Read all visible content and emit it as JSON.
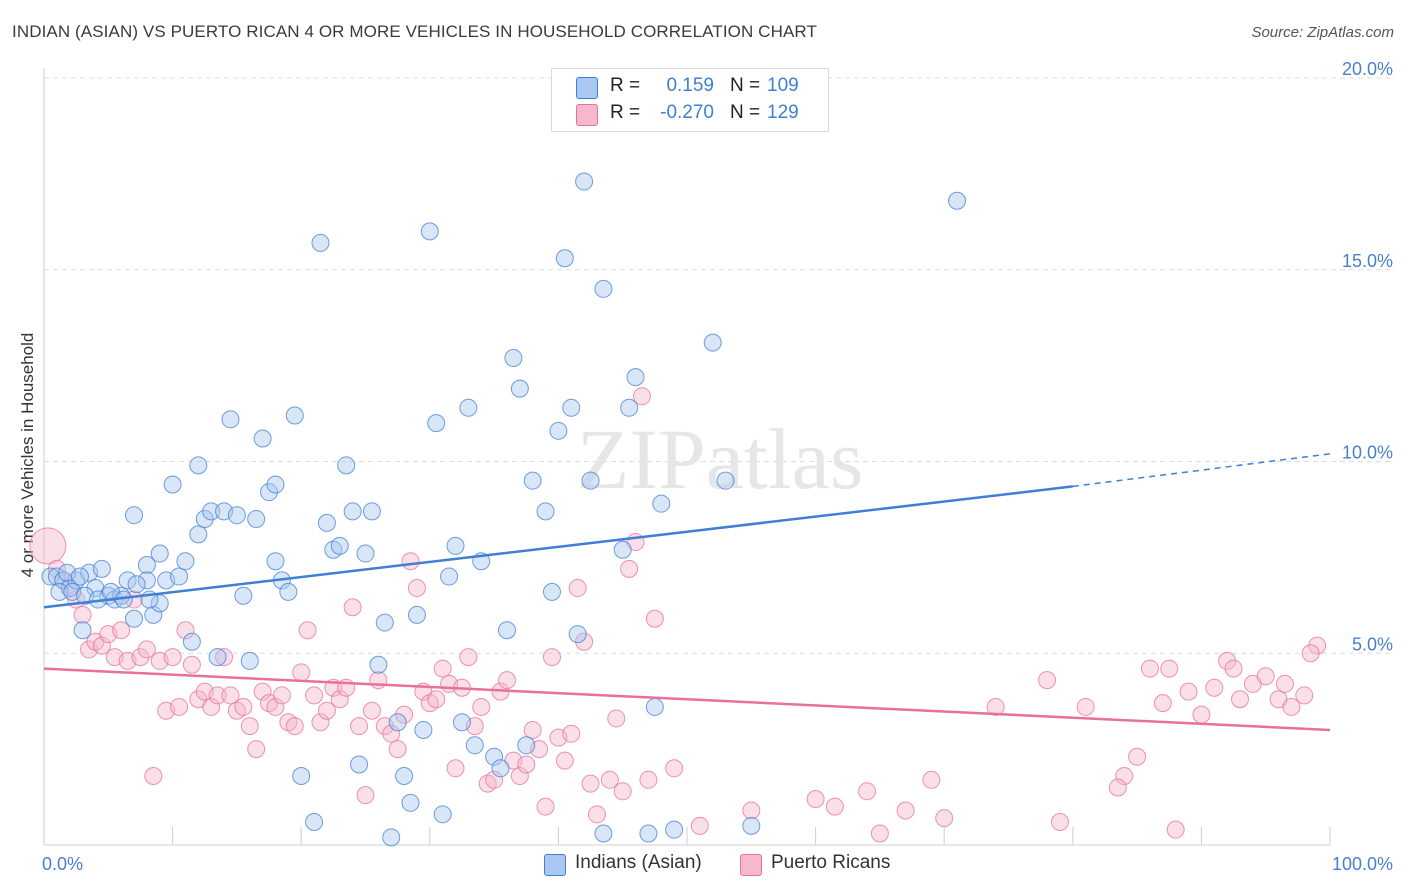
{
  "title": "INDIAN (ASIAN) VS PUERTO RICAN 4 OR MORE VEHICLES IN HOUSEHOLD CORRELATION CHART",
  "source": "Source: ZipAtlas.com",
  "watermark": "ZIPatlas",
  "colors": {
    "blue": "#3f7fd4",
    "blue_fill": "#aac8ef",
    "pink": "#e8709b",
    "pink_fill": "#f5b8cd",
    "axis_text": "#4a7fd0"
  },
  "legend_top": {
    "rows": [
      {
        "r_label": "R =",
        "r_value": "0.159",
        "n_label": "N =",
        "n_value": "109"
      },
      {
        "r_label": "R =",
        "r_value": "-0.270",
        "n_label": "N =",
        "n_value": "129"
      }
    ]
  },
  "chart_data": {
    "type": "scatter",
    "title": "INDIAN (ASIAN) VS PUERTO RICAN 4 OR MORE VEHICLES IN HOUSEHOLD CORRELATION CHART",
    "xlabel": "",
    "ylabel": "4 or more Vehicles in Household",
    "xlim": [
      0,
      100
    ],
    "ylim": [
      0,
      20
    ],
    "x_tick_labels": [
      "0.0%",
      "100.0%"
    ],
    "y_tick_labels": [
      "5.0%",
      "10.0%",
      "15.0%",
      "20.0%"
    ],
    "y_ticks": [
      5,
      10,
      15,
      20
    ],
    "grid": true,
    "series": [
      {
        "name": "Indians (Asian)",
        "r": 0.159,
        "n": 109,
        "trend": {
          "x0": 0,
          "y0": 6.2,
          "x1": 80,
          "y1": 9.35,
          "dashed_to_x": 100,
          "dashed_to_y": 10.2
        },
        "points": [
          [
            0.5,
            7.0
          ],
          [
            1.0,
            7.0
          ],
          [
            1.5,
            6.9
          ],
          [
            2.0,
            6.7
          ],
          [
            2.5,
            6.9
          ],
          [
            3.0,
            5.6
          ],
          [
            3.5,
            7.1
          ],
          [
            4.0,
            6.7
          ],
          [
            4.5,
            7.2
          ],
          [
            5.0,
            6.5
          ],
          [
            5.5,
            6.4
          ],
          [
            6.0,
            6.5
          ],
          [
            6.5,
            6.9
          ],
          [
            7.0,
            8.6
          ],
          [
            7.0,
            5.9
          ],
          [
            8.0,
            7.3
          ],
          [
            8.0,
            6.9
          ],
          [
            8.5,
            6.0
          ],
          [
            9.0,
            6.3
          ],
          [
            9.0,
            7.6
          ],
          [
            9.5,
            6.9
          ],
          [
            10.0,
            9.4
          ],
          [
            10.5,
            7.0
          ],
          [
            11.0,
            7.4
          ],
          [
            11.5,
            5.3
          ],
          [
            12.0,
            8.1
          ],
          [
            12.0,
            9.9
          ],
          [
            12.5,
            8.5
          ],
          [
            13.0,
            8.7
          ],
          [
            13.5,
            4.9
          ],
          [
            14.0,
            8.7
          ],
          [
            14.5,
            11.1
          ],
          [
            15.0,
            8.6
          ],
          [
            15.5,
            6.5
          ],
          [
            16.0,
            4.8
          ],
          [
            16.5,
            8.5
          ],
          [
            17.0,
            10.6
          ],
          [
            17.5,
            9.2
          ],
          [
            18.0,
            9.4
          ],
          [
            18.0,
            7.4
          ],
          [
            18.5,
            6.9
          ],
          [
            19.0,
            6.6
          ],
          [
            19.5,
            11.2
          ],
          [
            20.0,
            1.8
          ],
          [
            21.0,
            0.6
          ],
          [
            21.5,
            15.7
          ],
          [
            22.0,
            8.4
          ],
          [
            22.5,
            7.7
          ],
          [
            23.0,
            7.8
          ],
          [
            23.5,
            9.9
          ],
          [
            24.0,
            8.7
          ],
          [
            24.5,
            2.1
          ],
          [
            25.0,
            7.6
          ],
          [
            25.5,
            8.7
          ],
          [
            26.0,
            4.7
          ],
          [
            26.5,
            5.8
          ],
          [
            27.0,
            0.2
          ],
          [
            27.5,
            3.2
          ],
          [
            28.0,
            1.8
          ],
          [
            28.5,
            1.1
          ],
          [
            29.0,
            6.0
          ],
          [
            29.5,
            3.0
          ],
          [
            30.0,
            16.0
          ],
          [
            30.5,
            11.0
          ],
          [
            31.0,
            0.8
          ],
          [
            31.5,
            7.0
          ],
          [
            32.0,
            7.8
          ],
          [
            32.5,
            3.2
          ],
          [
            33.0,
            11.4
          ],
          [
            33.5,
            2.6
          ],
          [
            34.0,
            7.4
          ],
          [
            35.0,
            2.3
          ],
          [
            35.5,
            2.0
          ],
          [
            36.0,
            5.6
          ],
          [
            36.5,
            12.7
          ],
          [
            37.0,
            11.9
          ],
          [
            37.5,
            2.6
          ],
          [
            38.0,
            9.5
          ],
          [
            39.0,
            8.7
          ],
          [
            39.5,
            6.6
          ],
          [
            40.0,
            10.8
          ],
          [
            40.5,
            15.3
          ],
          [
            41.0,
            11.4
          ],
          [
            41.5,
            5.5
          ],
          [
            42.0,
            17.3
          ],
          [
            42.5,
            9.5
          ],
          [
            43.5,
            14.5
          ],
          [
            43.5,
            0.3
          ],
          [
            45.0,
            7.7
          ],
          [
            45.5,
            11.4
          ],
          [
            46.0,
            12.2
          ],
          [
            47.0,
            0.3
          ],
          [
            47.5,
            3.6
          ],
          [
            48.0,
            8.9
          ],
          [
            49.0,
            0.4
          ],
          [
            52.0,
            13.1
          ],
          [
            53.0,
            9.5
          ],
          [
            55.0,
            0.5
          ],
          [
            71.0,
            16.8
          ],
          [
            1.2,
            6.6
          ],
          [
            2.2,
            6.6
          ],
          [
            3.2,
            6.5
          ],
          [
            4.2,
            6.4
          ],
          [
            5.2,
            6.6
          ],
          [
            6.2,
            6.4
          ],
          [
            7.2,
            6.8
          ],
          [
            8.2,
            6.4
          ],
          [
            1.8,
            7.1
          ],
          [
            2.8,
            7.0
          ]
        ]
      },
      {
        "name": "Puerto Ricans",
        "r": -0.27,
        "n": 129,
        "trend": {
          "x0": 0,
          "y0": 4.6,
          "x1": 100,
          "y1": 3.0
        },
        "points": [
          [
            0.3,
            7.8
          ],
          [
            1.0,
            7.2
          ],
          [
            1.5,
            6.9
          ],
          [
            2.0,
            6.7
          ],
          [
            2.5,
            6.4
          ],
          [
            3.0,
            6.0
          ],
          [
            3.5,
            5.1
          ],
          [
            4.0,
            5.3
          ],
          [
            4.5,
            5.2
          ],
          [
            5.0,
            5.5
          ],
          [
            5.5,
            4.9
          ],
          [
            6.0,
            5.6
          ],
          [
            6.5,
            4.8
          ],
          [
            7.0,
            6.4
          ],
          [
            7.5,
            4.9
          ],
          [
            8.0,
            5.1
          ],
          [
            8.5,
            1.8
          ],
          [
            9.0,
            4.8
          ],
          [
            9.5,
            3.5
          ],
          [
            10.0,
            4.9
          ],
          [
            10.5,
            3.6
          ],
          [
            11.0,
            5.6
          ],
          [
            11.5,
            4.7
          ],
          [
            12.0,
            3.8
          ],
          [
            12.5,
            4.0
          ],
          [
            13.0,
            3.6
          ],
          [
            13.5,
            3.9
          ],
          [
            14.0,
            4.9
          ],
          [
            14.5,
            3.9
          ],
          [
            15.0,
            3.5
          ],
          [
            15.5,
            3.6
          ],
          [
            16.0,
            3.1
          ],
          [
            16.5,
            2.5
          ],
          [
            17.0,
            4.0
          ],
          [
            17.5,
            3.7
          ],
          [
            18.0,
            3.6
          ],
          [
            18.5,
            3.9
          ],
          [
            19.0,
            3.2
          ],
          [
            19.5,
            3.1
          ],
          [
            20.0,
            4.5
          ],
          [
            20.5,
            5.6
          ],
          [
            21.0,
            3.9
          ],
          [
            21.5,
            3.2
          ],
          [
            22.0,
            3.5
          ],
          [
            22.5,
            4.1
          ],
          [
            23.0,
            3.8
          ],
          [
            23.5,
            4.1
          ],
          [
            24.0,
            6.2
          ],
          [
            24.5,
            3.1
          ],
          [
            25.0,
            1.3
          ],
          [
            25.5,
            3.5
          ],
          [
            26.0,
            4.3
          ],
          [
            26.5,
            3.1
          ],
          [
            27.0,
            2.9
          ],
          [
            27.5,
            2.5
          ],
          [
            28.0,
            3.4
          ],
          [
            28.5,
            7.4
          ],
          [
            29.0,
            6.7
          ],
          [
            29.5,
            4.0
          ],
          [
            30.0,
            3.7
          ],
          [
            30.5,
            3.8
          ],
          [
            31.0,
            4.6
          ],
          [
            31.5,
            4.2
          ],
          [
            32.0,
            2.0
          ],
          [
            32.5,
            4.1
          ],
          [
            33.0,
            4.9
          ],
          [
            33.5,
            3.1
          ],
          [
            34.0,
            3.6
          ],
          [
            34.5,
            1.6
          ],
          [
            35.0,
            1.7
          ],
          [
            35.5,
            4.0
          ],
          [
            36.0,
            4.3
          ],
          [
            36.5,
            2.2
          ],
          [
            37.0,
            1.8
          ],
          [
            37.5,
            2.1
          ],
          [
            38.0,
            3.0
          ],
          [
            38.5,
            2.5
          ],
          [
            39.0,
            1.0
          ],
          [
            39.5,
            4.9
          ],
          [
            40.0,
            2.8
          ],
          [
            40.5,
            2.2
          ],
          [
            41.0,
            2.9
          ],
          [
            41.5,
            6.7
          ],
          [
            42.0,
            5.3
          ],
          [
            42.5,
            1.6
          ],
          [
            43.0,
            0.8
          ],
          [
            44.0,
            1.7
          ],
          [
            44.5,
            3.3
          ],
          [
            45.0,
            1.4
          ],
          [
            45.5,
            7.2
          ],
          [
            46.0,
            7.9
          ],
          [
            46.5,
            11.7
          ],
          [
            47.0,
            1.7
          ],
          [
            47.5,
            5.9
          ],
          [
            49.0,
            2.0
          ],
          [
            51.0,
            0.5
          ],
          [
            55.0,
            0.9
          ],
          [
            60.0,
            1.2
          ],
          [
            61.5,
            1.0
          ],
          [
            64.0,
            1.4
          ],
          [
            65.0,
            0.3
          ],
          [
            67.0,
            0.9
          ],
          [
            69.0,
            1.7
          ],
          [
            70.0,
            0.7
          ],
          [
            74.0,
            3.6
          ],
          [
            78.0,
            4.3
          ],
          [
            79.0,
            0.6
          ],
          [
            81.0,
            3.6
          ],
          [
            84.0,
            1.8
          ],
          [
            85.0,
            2.3
          ],
          [
            86.0,
            4.6
          ],
          [
            87.0,
            3.7
          ],
          [
            88.0,
            0.4
          ],
          [
            89.0,
            4.0
          ],
          [
            90.0,
            3.4
          ],
          [
            91.0,
            4.1
          ],
          [
            92.0,
            4.8
          ],
          [
            93.0,
            3.8
          ],
          [
            94.0,
            4.2
          ],
          [
            95.0,
            4.4
          ],
          [
            96.0,
            3.8
          ],
          [
            97.0,
            3.6
          ],
          [
            98.0,
            3.9
          ],
          [
            99.0,
            5.2
          ],
          [
            83.5,
            1.5
          ],
          [
            87.5,
            4.6
          ],
          [
            92.5,
            4.6
          ],
          [
            96.5,
            4.2
          ],
          [
            98.5,
            5.0
          ]
        ]
      }
    ]
  },
  "bottom_legend": {
    "items": [
      {
        "label": "Indians (Asian)"
      },
      {
        "label": "Puerto Ricans"
      }
    ]
  }
}
